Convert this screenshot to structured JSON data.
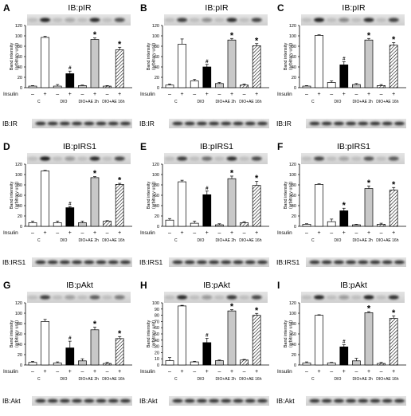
{
  "figure": {
    "insulin_label": "Insulin",
    "minus_sign": "–",
    "plus_sign": "+",
    "significance_star": "*",
    "significance_hash": "#",
    "group_labels": [
      "C",
      "DIO",
      "DIO+AE 2h",
      "DIO+AE 16h"
    ],
    "colors": {
      "white_bar": "#ffffff",
      "black_bar": "#000000",
      "gray_bar": "#c8c8c8",
      "hatched_bar": "hatched-diagonal",
      "blot_background": "#dedede",
      "band": "#1a1a1a"
    }
  },
  "chart_data": [
    {
      "type": "bar",
      "panel": "A",
      "title": "IB:pIR",
      "loading_label": "IB:IR",
      "ylabel": "Band intensity\n(arbitrary unit)",
      "ylim": [
        0,
        120
      ],
      "yticks": [
        0,
        20,
        40,
        60,
        80,
        100,
        120
      ],
      "categories": [
        "C –",
        "C +",
        "DIO –",
        "DIO +",
        "DIO+AE 2h –",
        "DIO+AE 2h +",
        "DIO+AE 16h –",
        "DIO+AE 16h +"
      ],
      "values": [
        3,
        97,
        3,
        27,
        4,
        93,
        3,
        73
      ],
      "errors": [
        1,
        2,
        3,
        5,
        1,
        3,
        1,
        5
      ],
      "annotations": [
        "",
        "",
        "",
        "#",
        "",
        "*",
        "",
        "*"
      ]
    },
    {
      "type": "bar",
      "panel": "B",
      "title": "IB:pIR",
      "loading_label": "IB:IR",
      "ylabel": "Band intensity\n(arbitrary unit)",
      "ylim": [
        0,
        120
      ],
      "yticks": [
        0,
        20,
        40,
        60,
        80,
        100,
        120
      ],
      "categories": [
        "C –",
        "C +",
        "DIO –",
        "DIO +",
        "DIO+AE 2h –",
        "DIO+AE 2h +",
        "DIO+AE 16h –",
        "DIO+AE 16h +"
      ],
      "values": [
        5,
        84,
        13,
        40,
        8,
        92,
        5,
        81
      ],
      "errors": [
        2,
        10,
        3,
        5,
        2,
        3,
        2,
        4
      ],
      "annotations": [
        "",
        "",
        "",
        "#",
        "",
        "*",
        "",
        "*"
      ]
    },
    {
      "type": "bar",
      "panel": "C",
      "title": "IB:pIR",
      "loading_label": "IB:IR",
      "ylabel": "Band intensity\n(arbitrary unit)",
      "ylim": [
        0,
        120
      ],
      "yticks": [
        0,
        20,
        40,
        60,
        80,
        100,
        120
      ],
      "categories": [
        "C –",
        "C +",
        "DIO –",
        "DIO +",
        "DIO+AE 2h –",
        "DIO+AE 2h +",
        "DIO+AE 16h –",
        "DIO+AE 16h +"
      ],
      "values": [
        3,
        101,
        10,
        44,
        6,
        92,
        4,
        82
      ],
      "errors": [
        1,
        1,
        3,
        6,
        2,
        3,
        2,
        5
      ],
      "annotations": [
        "",
        "",
        "",
        "#",
        "",
        "*",
        "",
        "*"
      ]
    },
    {
      "type": "bar",
      "panel": "D",
      "title": "IB:pIRS1",
      "loading_label": "IB:IRS1",
      "ylabel": "Band intensity\n(arbitrary unit)",
      "ylim": [
        0,
        120
      ],
      "yticks": [
        0,
        20,
        40,
        60,
        80,
        100,
        120
      ],
      "categories": [
        "C –",
        "C +",
        "DIO –",
        "DIO +",
        "DIO+AE 2h –",
        "DIO+AE 2h +",
        "DIO+AE 16h –",
        "DIO+AE 16h +"
      ],
      "values": [
        7,
        107,
        7,
        36,
        7,
        94,
        10,
        81
      ],
      "errors": [
        3,
        1,
        3,
        2,
        3,
        2,
        1,
        2
      ],
      "annotations": [
        "",
        "",
        "",
        "#",
        "",
        "*",
        "",
        "*"
      ]
    },
    {
      "type": "bar",
      "panel": "E",
      "title": "IB:pIRS1",
      "loading_label": "IB:IRS1",
      "ylabel": "Band intensity\n(arbitrary unit)",
      "ylim": [
        0,
        120
      ],
      "yticks": [
        0,
        20,
        40,
        60,
        80,
        100,
        120
      ],
      "categories": [
        "C –",
        "C +",
        "DIO –",
        "DIO +",
        "DIO+AE 2h –",
        "DIO+AE 2h +",
        "DIO+AE 16h –",
        "DIO+AE 16h +"
      ],
      "values": [
        12,
        86,
        6,
        61,
        3,
        92,
        7,
        79
      ],
      "errors": [
        3,
        3,
        4,
        7,
        2,
        5,
        2,
        8
      ],
      "annotations": [
        "",
        "",
        "",
        "#",
        "",
        "*",
        "",
        "*"
      ]
    },
    {
      "type": "bar",
      "panel": "F",
      "title": "IB:pIRS1",
      "loading_label": "IB:IRS1",
      "ylabel": "Band intensity\n(arbitrary unit)",
      "ylim": [
        0,
        120
      ],
      "yticks": [
        0,
        20,
        40,
        60,
        80,
        100,
        120
      ],
      "categories": [
        "C –",
        "C +",
        "DIO –",
        "DIO +",
        "DIO+AE 2h –",
        "DIO+AE 2h +",
        "DIO+AE 16h –",
        "DIO+AE 16h +"
      ],
      "values": [
        4,
        81,
        9,
        30,
        3,
        73,
        4,
        70
      ],
      "errors": [
        1,
        1,
        5,
        5,
        1,
        5,
        2,
        5
      ],
      "annotations": [
        "",
        "",
        "",
        "*",
        "",
        "*",
        "",
        "*"
      ]
    },
    {
      "type": "bar",
      "panel": "G",
      "title": "IB:pAkt",
      "loading_label": "IB:Akt",
      "ylabel": "Band intensity\n(arbitrary unit)",
      "ylim": [
        0,
        120
      ],
      "yticks": [
        0,
        20,
        40,
        60,
        80,
        100,
        120
      ],
      "categories": [
        "C –",
        "C +",
        "DIO –",
        "DIO +",
        "DIO+AE 2h –",
        "DIO+AE 2h +",
        "DIO+AE 16h –",
        "DIO+AE 16h +"
      ],
      "values": [
        5,
        84,
        4,
        33,
        8,
        68,
        3,
        51
      ],
      "errors": [
        2,
        4,
        2,
        13,
        4,
        5,
        2,
        4
      ],
      "annotations": [
        "",
        "",
        "",
        "#",
        "",
        "*",
        "",
        "*"
      ]
    },
    {
      "type": "bar",
      "panel": "H",
      "title": "IB:pAkt",
      "loading_label": "IB:Akt",
      "ylabel": "Band intensity\n(arbitrary unit)",
      "ylim": [
        0,
        100
      ],
      "yticks": [
        0,
        10,
        20,
        30,
        40,
        50,
        60,
        70,
        80,
        90,
        100
      ],
      "categories": [
        "C –",
        "C +",
        "DIO –",
        "DIO +",
        "DIO+AE 2h –",
        "DIO+AE 2h +",
        "DIO+AE 16h –",
        "DIO+AE 16h +"
      ],
      "values": [
        7,
        95,
        5,
        36,
        7,
        87,
        8,
        80
      ],
      "errors": [
        5,
        1,
        1,
        7,
        1,
        2,
        1,
        3
      ],
      "annotations": [
        "",
        "",
        "",
        "#",
        "",
        "*",
        "",
        "*"
      ]
    },
    {
      "type": "bar",
      "panel": "I",
      "title": "IB:pAkt",
      "loading_label": "IB:Akt",
      "ylabel": "Band intensity\n(arbitrary unit)",
      "ylim": [
        0,
        120
      ],
      "yticks": [
        0,
        20,
        40,
        60,
        80,
        100,
        120
      ],
      "categories": [
        "C –",
        "C +",
        "DIO –",
        "DIO +",
        "DIO+AE 2h –",
        "DIO+AE 2h +",
        "DIO+AE 16h –",
        "DIO+AE 16h +"
      ],
      "values": [
        4,
        96,
        4,
        35,
        8,
        101,
        3,
        90
      ],
      "errors": [
        2,
        1,
        1,
        4,
        5,
        2,
        2,
        5
      ],
      "annotations": [
        "",
        "",
        "",
        "#",
        "",
        "*",
        "",
        "*"
      ]
    }
  ]
}
